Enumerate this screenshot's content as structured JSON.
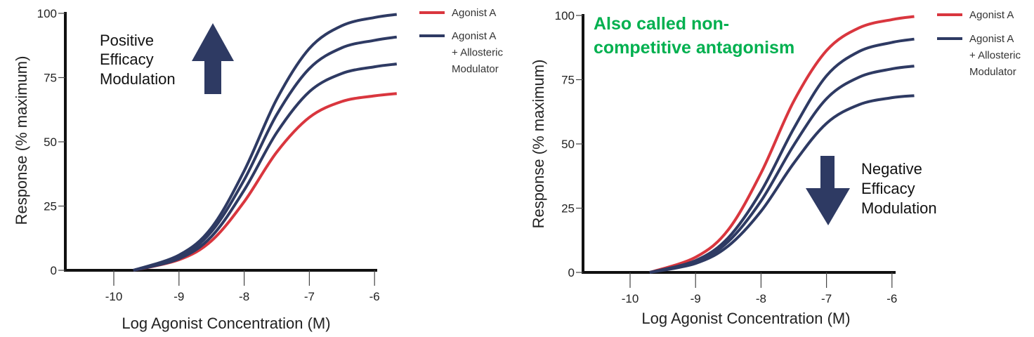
{
  "colors": {
    "agonist": "#d9363e",
    "modulated": "#2e3a63",
    "note": "#00b04f",
    "axis": "#111111"
  },
  "chart_data": [
    {
      "type": "line",
      "xlabel": "Log Agonist Concentration (M)",
      "ylabel": "Response (% maximum)",
      "xlim": [
        -10.74,
        -5.96
      ],
      "ylim": [
        0,
        100
      ],
      "xticks": [
        "-10",
        "-9",
        "-8",
        "-7",
        "-6"
      ],
      "yticks": [
        "0",
        "25",
        "50",
        "75",
        "100"
      ],
      "grid": false,
      "legend_position": "top-right",
      "legend": [
        {
          "label_lines": [
            "Agonist A"
          ],
          "color": "#d9363e"
        },
        {
          "label_lines": [
            "Agonist A",
            "+ Allosteric",
            "Modulator"
          ],
          "color": "#2e3a63"
        }
      ],
      "annotation": {
        "lines": [
          "Positive",
          "Efficacy",
          "Modulation"
        ],
        "arrow": "up-arrow"
      },
      "x": [
        -9.7,
        -9,
        -8.5,
        -8,
        -7.5,
        -7,
        -6.5,
        -6,
        -5.66
      ],
      "series": [
        {
          "legend": "Agonist A",
          "color": "#d9363e",
          "values": [
            0,
            4.1,
            11.5,
            26.7,
            46.0,
            59.5,
            65.7,
            67.9,
            68.8
          ]
        },
        {
          "legend": "Agonist A + Allosteric Modulator",
          "color": "#2e3a63",
          "values": [
            0,
            4.5,
            13.2,
            31.2,
            53.6,
            69.5,
            76.6,
            79.2,
            80.3
          ]
        },
        {
          "legend": "Agonist A + Allosteric Modulator",
          "color": "#2e3a63",
          "values": [
            0,
            5.2,
            15.1,
            35.2,
            60.6,
            78.5,
            86.6,
            89.5,
            90.8
          ]
        },
        {
          "legend": "Agonist A + Allosteric Modulator",
          "color": "#2e3a63",
          "values": [
            0,
            5.9,
            16.6,
            38.7,
            66.6,
            86.3,
            95.2,
            98.4,
            99.6
          ]
        }
      ]
    },
    {
      "type": "line",
      "xlabel": "Log Agonist Concentration (M)",
      "ylabel": "Response (% maximum)",
      "xlim": [
        -10.72,
        -5.96
      ],
      "ylim": [
        0,
        100
      ],
      "xticks": [
        "-10",
        "-9",
        "-8",
        "-7",
        "-6"
      ],
      "yticks": [
        "0",
        "25",
        "50",
        "75",
        "100"
      ],
      "grid": false,
      "legend_position": "top-right",
      "legend": [
        {
          "label_lines": [
            "Agonist A"
          ],
          "color": "#d9363e"
        },
        {
          "label_lines": [
            "Agonist A",
            "+ Allosteric",
            "Modulator"
          ],
          "color": "#2e3a63"
        }
      ],
      "title_note": [
        "Also called non-",
        "competitive antagonism"
      ],
      "annotation": {
        "lines": [
          "Negative",
          "Efficacy",
          "Modulation"
        ],
        "arrow": "down-arrow"
      },
      "x": [
        -9.7,
        -9,
        -8.5,
        -8,
        -7.5,
        -7,
        -6.5,
        -6,
        -5.66
      ],
      "series": [
        {
          "legend": "Agonist A",
          "color": "#d9363e",
          "values": [
            0,
            5.9,
            16.6,
            38.7,
            66.6,
            86.3,
            95.2,
            98.4,
            99.6
          ]
        },
        {
          "legend": "Agonist A + Allosteric Modulator",
          "color": "#2e3a63",
          "values": [
            0,
            4.6,
            13.5,
            31.5,
            56.0,
            76.5,
            86.0,
            89.5,
            90.8
          ]
        },
        {
          "legend": "Agonist A + Allosteric Modulator",
          "color": "#2e3a63",
          "values": [
            0,
            4.0,
            12.0,
            27.8,
            49.5,
            67.6,
            76.0,
            79.2,
            80.3
          ]
        },
        {
          "legend": "Agonist A + Allosteric Modulator",
          "color": "#2e3a63",
          "values": [
            0,
            3.5,
            10.3,
            23.8,
            42.5,
            58.0,
            65.3,
            68.0,
            68.8
          ]
        }
      ]
    }
  ]
}
